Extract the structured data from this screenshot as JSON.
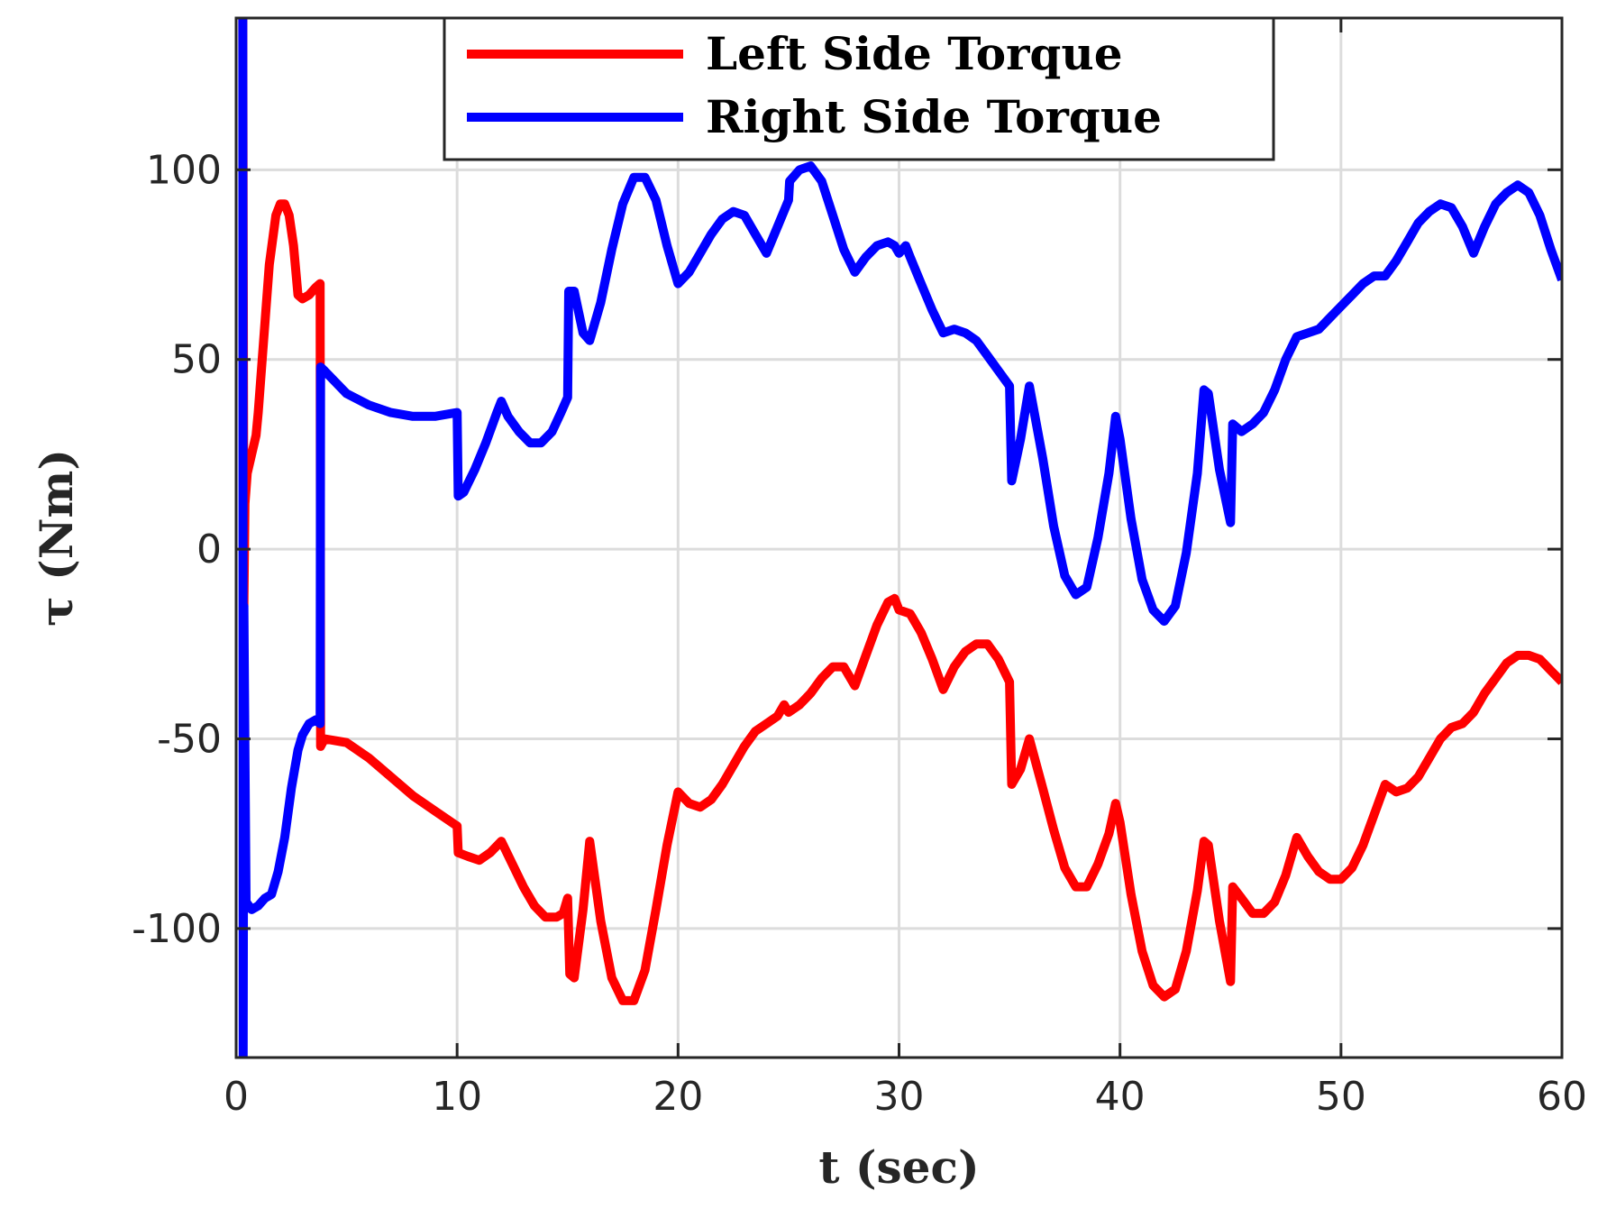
{
  "chart_data": {
    "type": "line",
    "title": "",
    "xlabel": "t (sec)",
    "ylabel": "τ (Nm)",
    "xlim": [
      0,
      60
    ],
    "ylim": [
      -134,
      140
    ],
    "xticks": [
      0,
      10,
      20,
      30,
      40,
      50,
      60
    ],
    "yticks": [
      -100,
      -50,
      0,
      50,
      100
    ],
    "xtick_labels": [
      "0",
      "10",
      "20",
      "30",
      "40",
      "50",
      "60"
    ],
    "ytick_labels": [
      "-100",
      "-50",
      "0",
      "50",
      "100"
    ],
    "grid": true,
    "legend_position": "top-center",
    "series": [
      {
        "name": "Left Side Torque",
        "color": "#ff0000",
        "points": [
          [
            0.3,
            140
          ],
          [
            0.35,
            -15
          ],
          [
            0.4,
            12
          ],
          [
            0.5,
            20
          ],
          [
            0.7,
            25
          ],
          [
            0.9,
            30
          ],
          [
            1.0,
            36
          ],
          [
            1.5,
            75
          ],
          [
            1.8,
            88
          ],
          [
            2.0,
            91
          ],
          [
            2.2,
            91
          ],
          [
            2.4,
            88
          ],
          [
            2.6,
            80
          ],
          [
            2.8,
            67
          ],
          [
            3.0,
            66
          ],
          [
            3.3,
            67
          ],
          [
            3.6,
            69
          ],
          [
            3.8,
            70
          ],
          [
            3.82,
            -52
          ],
          [
            4.0,
            -50
          ],
          [
            5.0,
            -51
          ],
          [
            6.0,
            -55
          ],
          [
            7.0,
            -60
          ],
          [
            8.0,
            -65
          ],
          [
            9.0,
            -69
          ],
          [
            10.0,
            -73
          ],
          [
            10.05,
            -80
          ],
          [
            10.5,
            -81
          ],
          [
            11.0,
            -82
          ],
          [
            11.5,
            -80
          ],
          [
            12.0,
            -77
          ],
          [
            12.5,
            -83
          ],
          [
            13.0,
            -89
          ],
          [
            13.5,
            -94
          ],
          [
            14.0,
            -97
          ],
          [
            14.5,
            -97
          ],
          [
            14.8,
            -96
          ],
          [
            15.0,
            -92
          ],
          [
            15.1,
            -112
          ],
          [
            15.3,
            -113
          ],
          [
            15.7,
            -95
          ],
          [
            16.0,
            -77
          ],
          [
            16.5,
            -98
          ],
          [
            17.0,
            -113
          ],
          [
            17.5,
            -119
          ],
          [
            18.0,
            -119
          ],
          [
            18.5,
            -111
          ],
          [
            19.0,
            -95
          ],
          [
            19.5,
            -78
          ],
          [
            20.0,
            -64
          ],
          [
            20.5,
            -67
          ],
          [
            21.0,
            -68
          ],
          [
            21.5,
            -66
          ],
          [
            22.0,
            -62
          ],
          [
            22.5,
            -57
          ],
          [
            23.0,
            -52
          ],
          [
            23.5,
            -48
          ],
          [
            24.0,
            -46
          ],
          [
            24.5,
            -44
          ],
          [
            24.8,
            -41
          ],
          [
            25.0,
            -43
          ],
          [
            25.5,
            -41
          ],
          [
            26.0,
            -38
          ],
          [
            26.5,
            -34
          ],
          [
            27.0,
            -31
          ],
          [
            27.5,
            -31
          ],
          [
            28.0,
            -36
          ],
          [
            28.5,
            -28
          ],
          [
            29.0,
            -20
          ],
          [
            29.5,
            -14
          ],
          [
            29.8,
            -13
          ],
          [
            30.0,
            -16
          ],
          [
            30.5,
            -17
          ],
          [
            31.0,
            -22
          ],
          [
            31.5,
            -29
          ],
          [
            32.0,
            -37
          ],
          [
            32.5,
            -31
          ],
          [
            33.0,
            -27
          ],
          [
            33.5,
            -25
          ],
          [
            34.0,
            -25
          ],
          [
            34.5,
            -29
          ],
          [
            35.0,
            -35
          ],
          [
            35.1,
            -62
          ],
          [
            35.5,
            -58
          ],
          [
            35.9,
            -50
          ],
          [
            36.5,
            -63
          ],
          [
            37.0,
            -74
          ],
          [
            37.5,
            -84
          ],
          [
            38.0,
            -89
          ],
          [
            38.5,
            -89
          ],
          [
            39.0,
            -83
          ],
          [
            39.5,
            -75
          ],
          [
            39.8,
            -67
          ],
          [
            40.0,
            -72
          ],
          [
            40.5,
            -91
          ],
          [
            41.0,
            -106
          ],
          [
            41.5,
            -115
          ],
          [
            42.0,
            -118
          ],
          [
            42.5,
            -116
          ],
          [
            43.0,
            -106
          ],
          [
            43.5,
            -90
          ],
          [
            43.8,
            -77
          ],
          [
            44.0,
            -78
          ],
          [
            44.5,
            -98
          ],
          [
            45.0,
            -114
          ],
          [
            45.1,
            -89
          ],
          [
            45.5,
            -92
          ],
          [
            46.0,
            -96
          ],
          [
            46.5,
            -96
          ],
          [
            47.0,
            -93
          ],
          [
            47.5,
            -86
          ],
          [
            48.0,
            -76
          ],
          [
            48.5,
            -81
          ],
          [
            49.0,
            -85
          ],
          [
            49.5,
            -87
          ],
          [
            50.0,
            -87
          ],
          [
            50.5,
            -84
          ],
          [
            51.0,
            -78
          ],
          [
            51.5,
            -70
          ],
          [
            52.0,
            -62
          ],
          [
            52.5,
            -64
          ],
          [
            53.0,
            -63
          ],
          [
            53.5,
            -60
          ],
          [
            54.0,
            -55
          ],
          [
            54.5,
            -50
          ],
          [
            55.0,
            -47
          ],
          [
            55.5,
            -46
          ],
          [
            56.0,
            -43
          ],
          [
            56.5,
            -38
          ],
          [
            57.0,
            -34
          ],
          [
            57.5,
            -30
          ],
          [
            58.0,
            -28
          ],
          [
            58.5,
            -28
          ],
          [
            59.0,
            -29
          ],
          [
            59.5,
            -32
          ],
          [
            60.0,
            -35
          ]
        ]
      },
      {
        "name": "Right Side Torque",
        "color": "#0000ff",
        "points": [
          [
            0.3,
            140
          ],
          [
            0.32,
            -134
          ],
          [
            0.35,
            -15
          ],
          [
            0.45,
            -93
          ],
          [
            0.7,
            -95
          ],
          [
            1.0,
            -94
          ],
          [
            1.3,
            -92
          ],
          [
            1.6,
            -91
          ],
          [
            1.9,
            -85
          ],
          [
            2.2,
            -76
          ],
          [
            2.5,
            -63
          ],
          [
            2.8,
            -53
          ],
          [
            3.0,
            -49
          ],
          [
            3.3,
            -46
          ],
          [
            3.6,
            -45
          ],
          [
            3.8,
            -46
          ],
          [
            3.82,
            48
          ],
          [
            4.0,
            47
          ],
          [
            5.0,
            41
          ],
          [
            6.0,
            38
          ],
          [
            7.0,
            36
          ],
          [
            8.0,
            35
          ],
          [
            9.0,
            35
          ],
          [
            10.0,
            36
          ],
          [
            10.05,
            14
          ],
          [
            10.3,
            15
          ],
          [
            10.8,
            21
          ],
          [
            11.3,
            28
          ],
          [
            11.8,
            36
          ],
          [
            12.0,
            39
          ],
          [
            12.3,
            35
          ],
          [
            12.8,
            31
          ],
          [
            13.3,
            28
          ],
          [
            13.8,
            28
          ],
          [
            14.3,
            31
          ],
          [
            14.7,
            36
          ],
          [
            15.0,
            40
          ],
          [
            15.05,
            68
          ],
          [
            15.3,
            68
          ],
          [
            15.7,
            57
          ],
          [
            16.0,
            55
          ],
          [
            16.5,
            65
          ],
          [
            17.0,
            79
          ],
          [
            17.5,
            91
          ],
          [
            18.0,
            98
          ],
          [
            18.5,
            98
          ],
          [
            19.0,
            92
          ],
          [
            19.5,
            80
          ],
          [
            20.0,
            70
          ],
          [
            20.5,
            73
          ],
          [
            21.0,
            78
          ],
          [
            21.5,
            83
          ],
          [
            22.0,
            87
          ],
          [
            22.5,
            89
          ],
          [
            23.0,
            88
          ],
          [
            23.5,
            83
          ],
          [
            24.0,
            78
          ],
          [
            24.5,
            85
          ],
          [
            25.0,
            92
          ],
          [
            25.05,
            97
          ],
          [
            25.5,
            100
          ],
          [
            26.0,
            101
          ],
          [
            26.5,
            97
          ],
          [
            27.0,
            88
          ],
          [
            27.5,
            79
          ],
          [
            28.0,
            73
          ],
          [
            28.5,
            77
          ],
          [
            29.0,
            80
          ],
          [
            29.5,
            81
          ],
          [
            29.8,
            80
          ],
          [
            30.0,
            78
          ],
          [
            30.3,
            80
          ],
          [
            30.5,
            77
          ],
          [
            31.0,
            70
          ],
          [
            31.5,
            63
          ],
          [
            32.0,
            57
          ],
          [
            32.5,
            58
          ],
          [
            33.0,
            57
          ],
          [
            33.5,
            55
          ],
          [
            34.0,
            51
          ],
          [
            34.5,
            47
          ],
          [
            35.0,
            43
          ],
          [
            35.1,
            18
          ],
          [
            35.5,
            29
          ],
          [
            35.9,
            43
          ],
          [
            36.5,
            24
          ],
          [
            37.0,
            6
          ],
          [
            37.5,
            -7
          ],
          [
            38.0,
            -12
          ],
          [
            38.5,
            -10
          ],
          [
            39.0,
            3
          ],
          [
            39.5,
            20
          ],
          [
            39.8,
            35
          ],
          [
            40.0,
            29
          ],
          [
            40.5,
            8
          ],
          [
            41.0,
            -8
          ],
          [
            41.5,
            -16
          ],
          [
            42.0,
            -19
          ],
          [
            42.5,
            -15
          ],
          [
            43.0,
            -1
          ],
          [
            43.5,
            20
          ],
          [
            43.8,
            42
          ],
          [
            44.0,
            41
          ],
          [
            44.5,
            21
          ],
          [
            45.0,
            7
          ],
          [
            45.1,
            33
          ],
          [
            45.5,
            31
          ],
          [
            46.0,
            33
          ],
          [
            46.5,
            36
          ],
          [
            47.0,
            42
          ],
          [
            47.5,
            50
          ],
          [
            48.0,
            56
          ],
          [
            48.5,
            57
          ],
          [
            49.0,
            58
          ],
          [
            49.5,
            61
          ],
          [
            50.0,
            64
          ],
          [
            50.5,
            67
          ],
          [
            51.0,
            70
          ],
          [
            51.5,
            72
          ],
          [
            52.0,
            72
          ],
          [
            52.5,
            76
          ],
          [
            53.0,
            81
          ],
          [
            53.5,
            86
          ],
          [
            54.0,
            89
          ],
          [
            54.5,
            91
          ],
          [
            55.0,
            90
          ],
          [
            55.5,
            85
          ],
          [
            56.0,
            78
          ],
          [
            56.5,
            85
          ],
          [
            57.0,
            91
          ],
          [
            57.5,
            94
          ],
          [
            58.0,
            96
          ],
          [
            58.5,
            94
          ],
          [
            59.0,
            88
          ],
          [
            59.5,
            79
          ],
          [
            60.0,
            71
          ]
        ]
      }
    ]
  }
}
